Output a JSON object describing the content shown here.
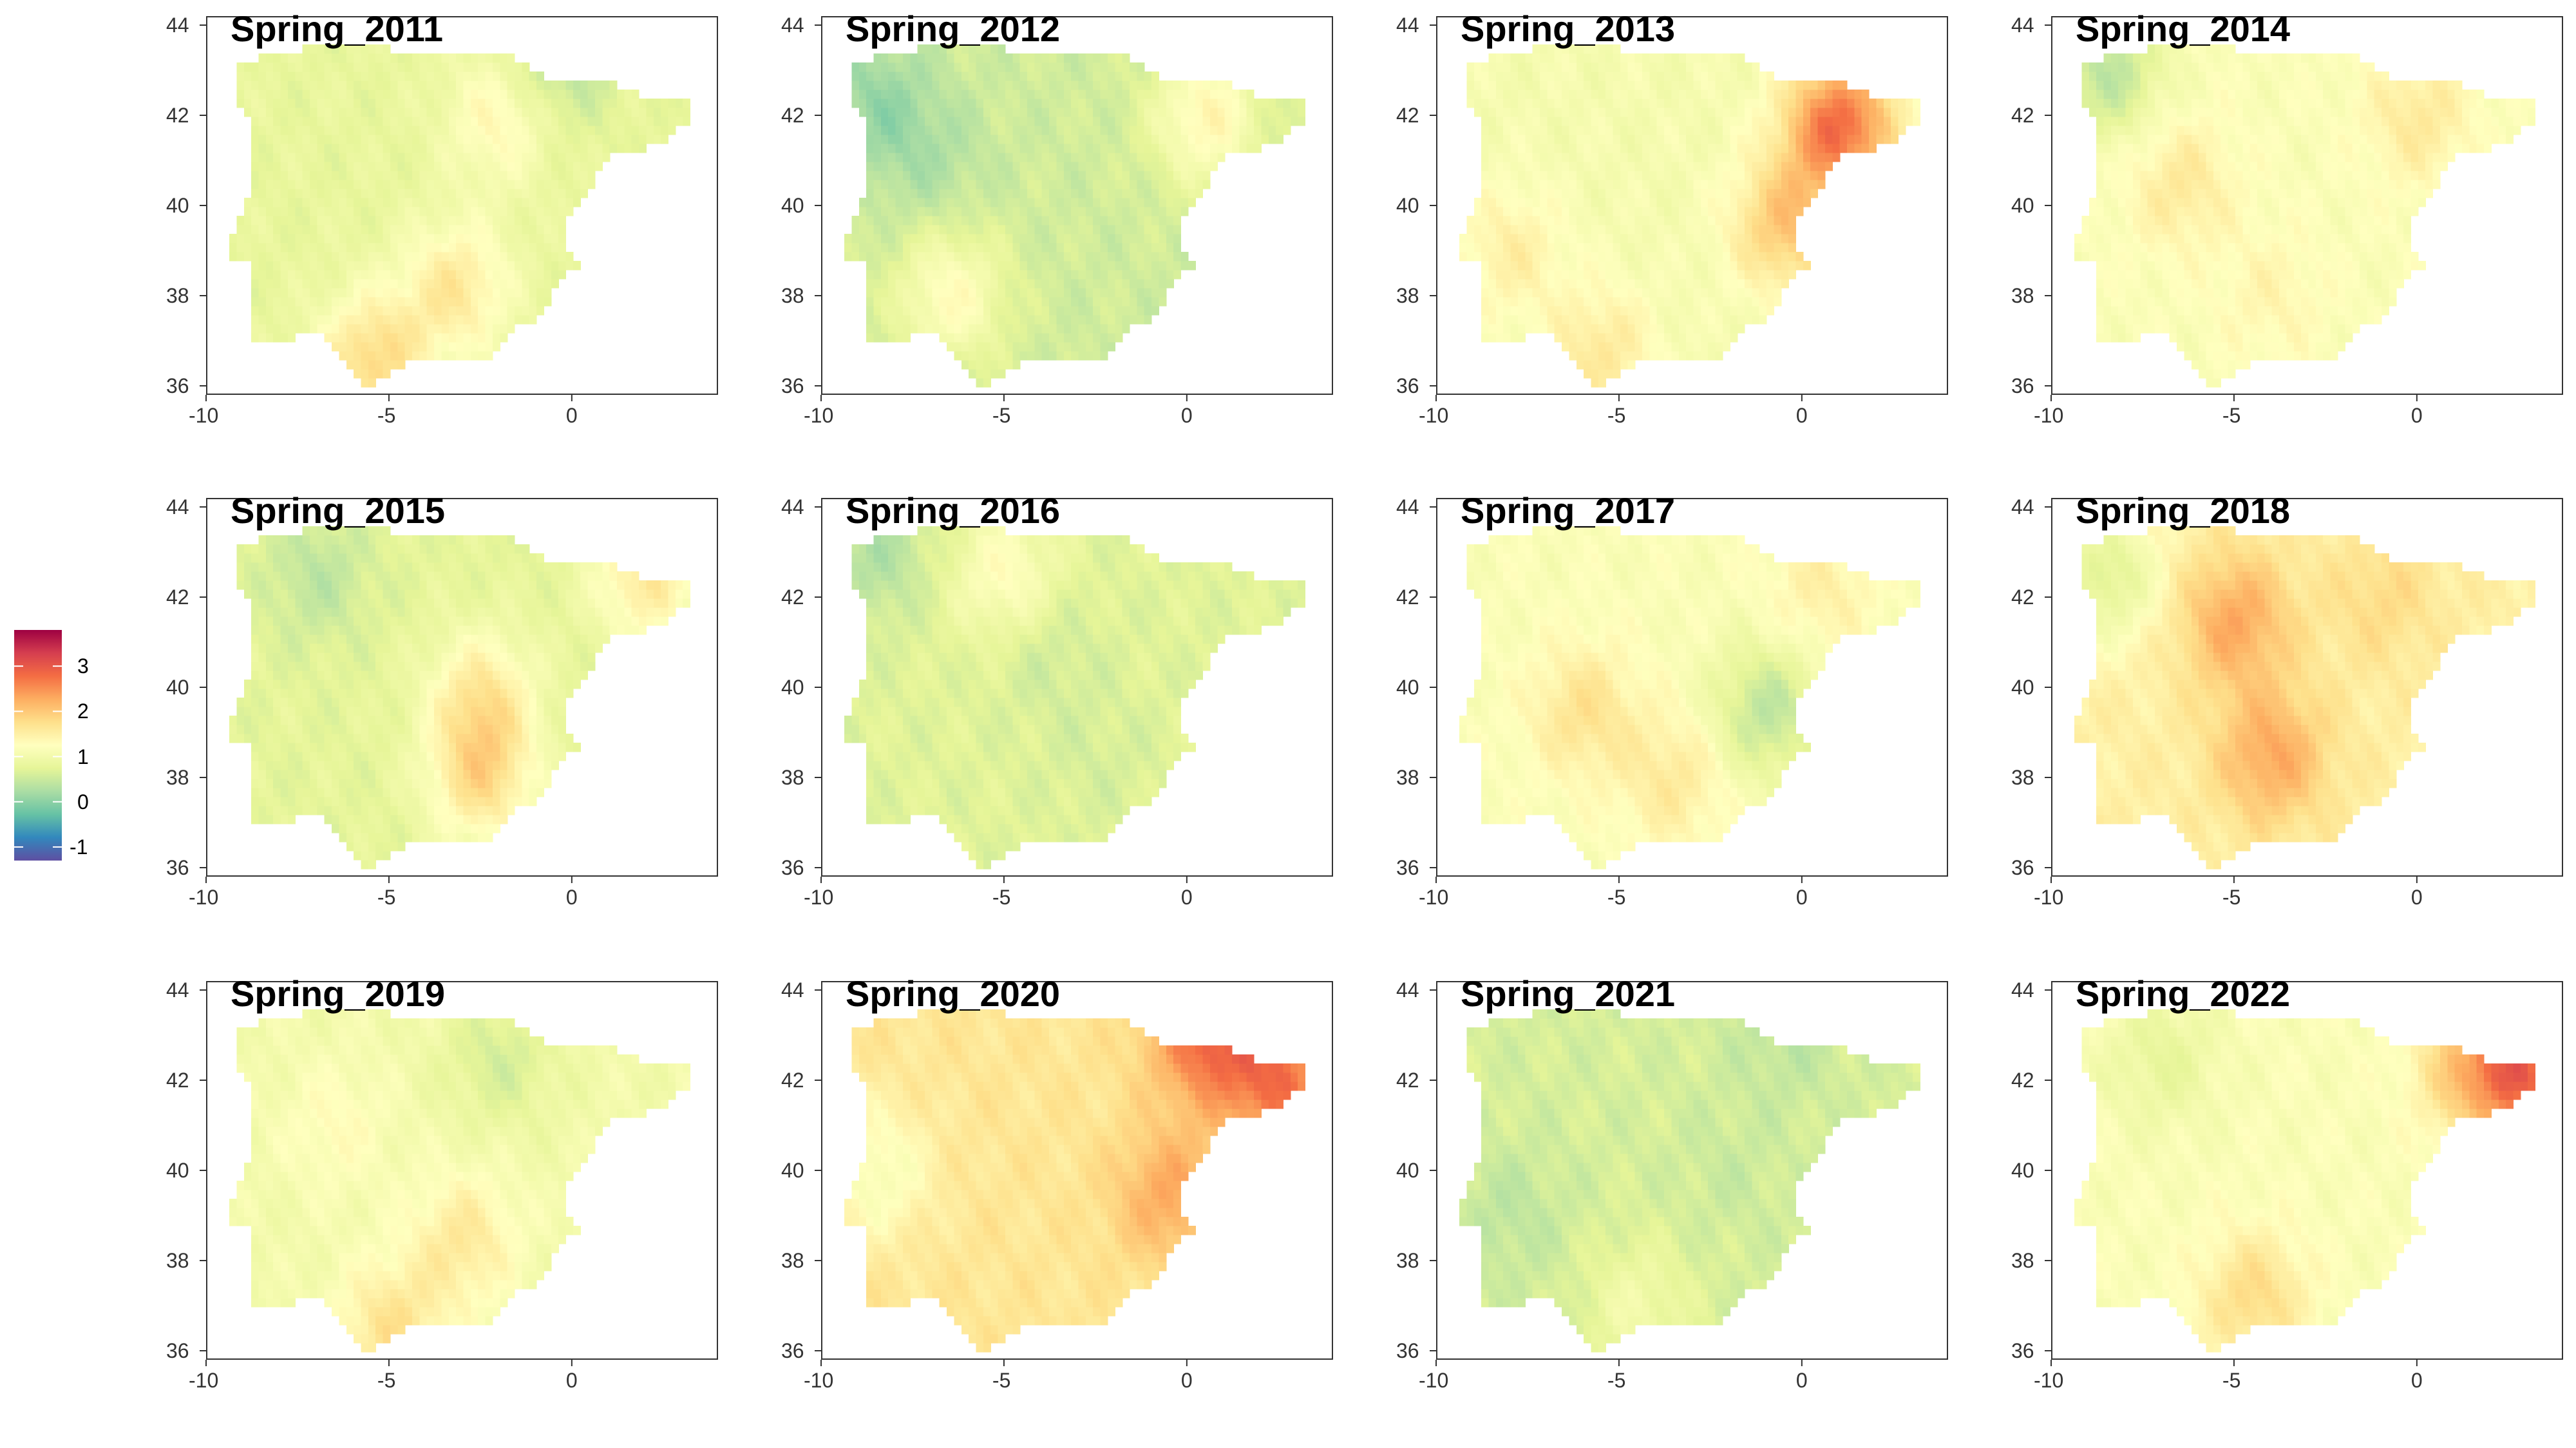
{
  "chart_data": {
    "type": "heatmap",
    "region": "Iberian Peninsula",
    "layout": {
      "rows": 3,
      "cols": 4
    },
    "x_ticks": [
      -10,
      -5,
      0
    ],
    "y_ticks": [
      36,
      38,
      40,
      42,
      44
    ],
    "xlim": [
      -10,
      4
    ],
    "ylim": [
      35.8,
      44.2
    ],
    "legend": {
      "placement": "left",
      "ticks": [
        3,
        2,
        1,
        0,
        -1
      ],
      "range": [
        -1.3,
        3.8
      ],
      "colors": [
        "#5E4FA2",
        "#3288BD",
        "#66C2A5",
        "#ABDDA4",
        "#E6F598",
        "#FFFFBF",
        "#FEE08B",
        "#FDAE61",
        "#F46D43",
        "#D53E4F",
        "#9E0142"
      ]
    },
    "panels": [
      {
        "title": "Spring_2011",
        "mean_anomaly": 0.8,
        "hotspots": [
          [
            -3.2,
            38.2,
            1.6
          ],
          [
            -5.5,
            36.6,
            1.8
          ],
          [
            -2.0,
            42.0,
            1.4
          ],
          [
            -0.5,
            43.2,
            0.3
          ]
        ]
      },
      {
        "title": "Spring_2012",
        "mean_anomaly": 0.55,
        "hotspots": [
          [
            -8.5,
            42.3,
            0.1
          ],
          [
            0.5,
            42.0,
            1.4
          ],
          [
            -6.5,
            38.0,
            1.3
          ],
          [
            -7.0,
            41.0,
            0.3
          ]
        ]
      },
      {
        "title": "Spring_2013",
        "mean_anomaly": 1.05,
        "hotspots": [
          [
            1.0,
            41.8,
            2.8
          ],
          [
            -0.5,
            39.6,
            2.0
          ],
          [
            -8.0,
            39.0,
            1.5
          ],
          [
            -5.5,
            36.8,
            1.6
          ]
        ]
      },
      {
        "title": "Spring_2014",
        "mean_anomaly": 1.15,
        "hotspots": [
          [
            -6.5,
            40.5,
            1.6
          ],
          [
            0.0,
            42.0,
            1.6
          ],
          [
            -4.0,
            38.0,
            1.4
          ],
          [
            -8.5,
            43.0,
            0.4
          ]
        ]
      },
      {
        "title": "Spring_2015",
        "mean_anomaly": 0.75,
        "hotspots": [
          [
            -2.5,
            39.8,
            1.6
          ],
          [
            -2.5,
            38.0,
            1.7
          ],
          [
            2.0,
            42.5,
            1.6
          ],
          [
            -7.0,
            42.5,
            0.4
          ]
        ]
      },
      {
        "title": "Spring_2016",
        "mean_anomaly": 0.7,
        "hotspots": [
          [
            -8.5,
            43.0,
            0.3
          ],
          [
            -5.0,
            42.5,
            1.3
          ],
          [
            -4.0,
            41.0,
            0.5
          ],
          [
            -2.5,
            38.5,
            0.6
          ]
        ]
      },
      {
        "title": "Spring_2017",
        "mean_anomaly": 1.15,
        "hotspots": [
          [
            -6.0,
            39.5,
            1.7
          ],
          [
            -3.5,
            38.0,
            1.6
          ],
          [
            -1.0,
            39.5,
            0.4
          ],
          [
            0.5,
            42.2,
            1.5
          ]
        ]
      },
      {
        "title": "Spring_2018",
        "mean_anomaly": 1.5,
        "hotspots": [
          [
            -5.0,
            41.5,
            2.3
          ],
          [
            -4.0,
            38.5,
            2.3
          ],
          [
            -1.0,
            42.0,
            1.8
          ],
          [
            -8.5,
            42.5,
            0.7
          ]
        ]
      },
      {
        "title": "Spring_2019",
        "mean_anomaly": 1.0,
        "hotspots": [
          [
            -3.0,
            38.5,
            1.6
          ],
          [
            -5.0,
            36.5,
            1.7
          ],
          [
            -2.0,
            42.5,
            0.6
          ],
          [
            -6.5,
            41.0,
            1.3
          ]
        ]
      },
      {
        "title": "Spring_2020",
        "mean_anomaly": 1.65,
        "hotspots": [
          [
            0.5,
            43.0,
            2.8
          ],
          [
            2.5,
            42.0,
            2.7
          ],
          [
            -0.5,
            39.5,
            2.3
          ],
          [
            -8.5,
            40.0,
            1.1
          ]
        ]
      },
      {
        "title": "Spring_2021",
        "mean_anomaly": 0.6,
        "hotspots": [
          [
            -0.5,
            43.0,
            0.4
          ],
          [
            -2.0,
            40.0,
            0.5
          ],
          [
            -8.0,
            39.0,
            0.4
          ],
          [
            -4.5,
            37.0,
            1.0
          ]
        ]
      },
      {
        "title": "Spring_2022",
        "mean_anomaly": 1.15,
        "hotspots": [
          [
            1.5,
            42.3,
            2.0
          ],
          [
            3.0,
            42.2,
            2.6
          ],
          [
            -4.5,
            37.2,
            1.8
          ],
          [
            -7.0,
            42.5,
            0.8
          ]
        ]
      }
    ]
  }
}
